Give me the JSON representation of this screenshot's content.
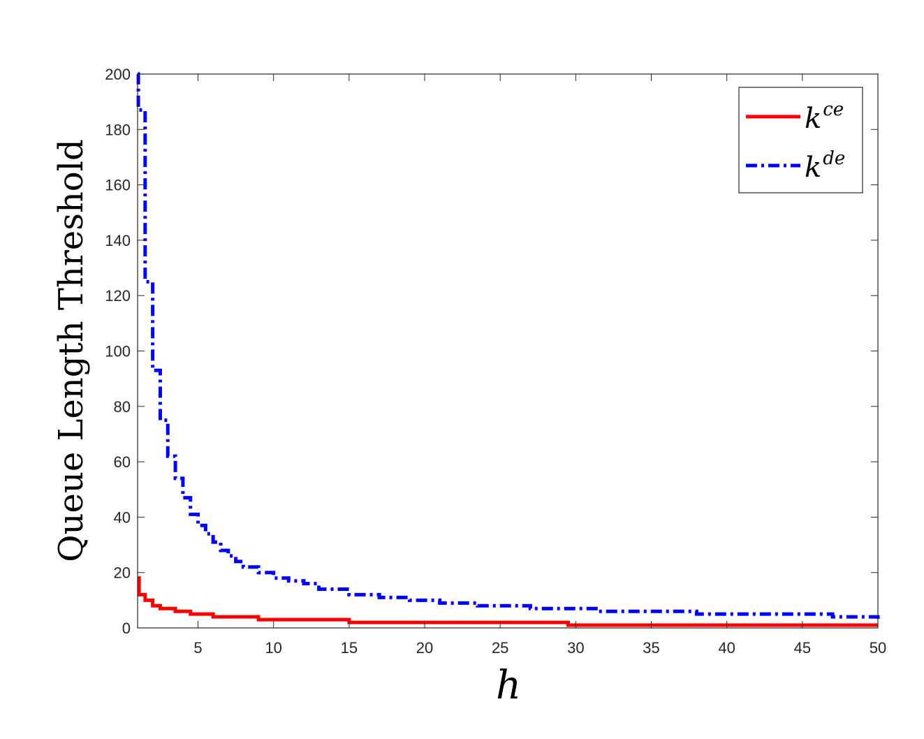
{
  "chart_data": {
    "type": "line",
    "xlabel": "h",
    "ylabel": "Queue Length Threshold",
    "xlim": [
      1,
      50
    ],
    "ylim": [
      0,
      200
    ],
    "xticks": [
      5,
      10,
      15,
      20,
      25,
      30,
      35,
      40,
      45,
      50
    ],
    "yticks": [
      0,
      20,
      40,
      60,
      80,
      100,
      120,
      140,
      160,
      180,
      200
    ],
    "grid": false,
    "legend_position": "top-right",
    "series": [
      {
        "name": "k",
        "name_superscript": "ce",
        "color": "#ff0000",
        "line_style": "solid",
        "step": true,
        "x": [
          1,
          1.1,
          1.5,
          2,
          2.5,
          3.5,
          4.5,
          6,
          9,
          15,
          29.5,
          50
        ],
        "y": [
          18,
          12,
          10,
          8,
          7,
          6,
          5,
          4,
          3,
          2,
          1,
          1
        ]
      },
      {
        "name": "k",
        "name_superscript": "de",
        "color": "#0000ff",
        "line_style": "dashdot",
        "step": true,
        "x": [
          1,
          1.05,
          1.5,
          2,
          2.5,
          3,
          3.5,
          4,
          4.5,
          5,
          5.5,
          6,
          6.5,
          7,
          7.5,
          8,
          9,
          10,
          11,
          12,
          13,
          15,
          17,
          19,
          21,
          23.5,
          27,
          31.5,
          38,
          47,
          50
        ],
        "y": [
          200,
          187,
          125,
          93,
          75,
          62,
          54,
          47,
          41,
          37,
          34,
          31,
          28,
          26,
          24,
          22,
          20,
          18,
          17,
          16,
          14,
          12,
          11,
          10,
          9,
          8,
          7,
          6,
          5,
          4,
          3
        ]
      }
    ]
  },
  "colors": {
    "axis": "#262626",
    "background": "#ffffff"
  }
}
